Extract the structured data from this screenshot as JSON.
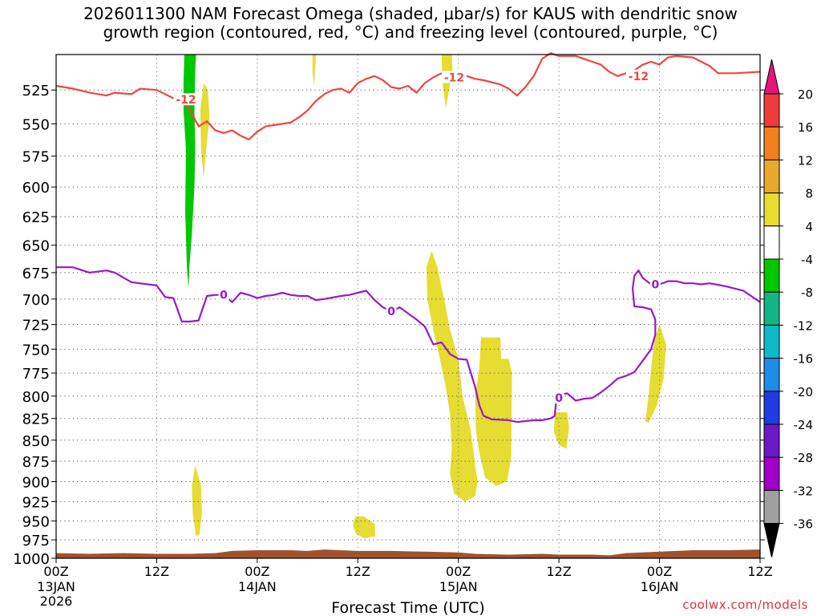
{
  "chart_data": {
    "type": "contour",
    "title_lines": [
      "2026011300 NAM Forecast Omega (shaded, μbar/s) for KAUS with dendritic snow",
      "growth region (contoured, red, °C) and freezing level (contoured, purple, °C)"
    ],
    "xlabel": "Forecast Time (UTC)",
    "ylabel": "",
    "x_ticks": [
      {
        "label": "00Z",
        "sub": "13JAN",
        "sub2": "2026",
        "hour": 0
      },
      {
        "label": "12Z",
        "sub": "",
        "sub2": "",
        "hour": 12
      },
      {
        "label": "00Z",
        "sub": "14JAN",
        "sub2": "",
        "hour": 24
      },
      {
        "label": "12Z",
        "sub": "",
        "sub2": "",
        "hour": 36
      },
      {
        "label": "00Z",
        "sub": "15JAN",
        "sub2": "",
        "hour": 48
      },
      {
        "label": "12Z",
        "sub": "",
        "sub2": "",
        "hour": 60
      },
      {
        "label": "00Z",
        "sub": "16JAN",
        "sub2": "",
        "hour": 72
      },
      {
        "label": "12Z",
        "sub": "",
        "sub2": "",
        "hour": 84
      }
    ],
    "xlim": [
      0,
      84
    ],
    "y_ticks": [
      525,
      550,
      575,
      600,
      625,
      650,
      675,
      700,
      725,
      750,
      775,
      800,
      825,
      850,
      875,
      900,
      925,
      950,
      975,
      1000
    ],
    "ylim": [
      500,
      1000
    ],
    "y_scale": "log",
    "grid": true,
    "colorbar": {
      "labels": [
        "20",
        "16",
        "12",
        "8",
        "4",
        "-4",
        "-8",
        "-12",
        "-16",
        "-20",
        "-24",
        "-28",
        "-32",
        "-36"
      ],
      "bins": [
        {
          "from": 16,
          "to": 20,
          "color": "#ee3b3b"
        },
        {
          "from": 12,
          "to": 16,
          "color": "#f07f1c"
        },
        {
          "from": 8,
          "to": 12,
          "color": "#e8a92e"
        },
        {
          "from": 4,
          "to": 8,
          "color": "#e6dc32"
        },
        {
          "from": -4,
          "to": 4,
          "color": "#ffffff"
        },
        {
          "from": -8,
          "to": -4,
          "color": "#00c800"
        },
        {
          "from": -12,
          "to": -8,
          "color": "#13b584"
        },
        {
          "from": -16,
          "to": -12,
          "color": "#10b9c8"
        },
        {
          "from": -20,
          "to": -16,
          "color": "#1e8ce8"
        },
        {
          "from": -24,
          "to": -20,
          "color": "#1e3ce0"
        },
        {
          "from": -28,
          "to": -24,
          "color": "#6a18c8"
        },
        {
          "from": -32,
          "to": -28,
          "color": "#a000c8"
        },
        {
          "from": -36,
          "to": -32,
          "color": "#a0a0a0"
        }
      ],
      "top_triangle_color": "#e6157a",
      "bottom_triangle_color": "#000000"
    },
    "contour_minus12": {
      "name": "-12",
      "color": "#f0463c",
      "label_text": "-12",
      "label_points": [
        [
          15.5,
          532
        ],
        [
          47.5,
          516
        ],
        [
          69.5,
          515
        ]
      ],
      "points": [
        [
          0,
          522
        ],
        [
          2,
          524
        ],
        [
          4,
          527
        ],
        [
          6,
          529
        ],
        [
          7,
          527
        ],
        [
          9,
          528
        ],
        [
          10,
          524
        ],
        [
          12,
          525
        ],
        [
          14,
          531
        ],
        [
          15,
          532
        ],
        [
          16,
          540
        ],
        [
          17,
          552
        ],
        [
          18,
          548
        ],
        [
          19,
          555
        ],
        [
          20,
          557
        ],
        [
          21,
          555
        ],
        [
          22,
          559
        ],
        [
          23,
          562
        ],
        [
          24,
          556
        ],
        [
          25,
          552
        ],
        [
          26,
          551
        ],
        [
          28,
          549
        ],
        [
          29,
          545
        ],
        [
          30,
          540
        ],
        [
          31,
          533
        ],
        [
          32,
          528
        ],
        [
          33,
          525
        ],
        [
          34,
          524
        ],
        [
          35,
          527
        ],
        [
          36,
          520
        ],
        [
          37,
          517
        ],
        [
          38,
          515
        ],
        [
          39,
          518
        ],
        [
          40,
          523
        ],
        [
          41,
          524
        ],
        [
          42,
          522
        ],
        [
          43,
          527
        ],
        [
          44,
          520
        ],
        [
          45,
          516
        ],
        [
          46,
          513
        ],
        [
          47,
          516
        ],
        [
          48,
          515
        ],
        [
          49,
          515
        ],
        [
          50,
          517
        ],
        [
          51,
          518
        ],
        [
          53,
          521
        ],
        [
          54,
          524
        ],
        [
          55,
          529
        ],
        [
          56,
          523
        ],
        [
          57,
          515
        ],
        [
          58,
          503
        ],
        [
          59,
          499
        ],
        [
          60,
          501
        ],
        [
          62,
          501
        ],
        [
          63,
          503
        ],
        [
          64,
          505
        ],
        [
          65,
          507
        ],
        [
          66,
          512
        ],
        [
          67,
          515
        ],
        [
          68,
          513
        ],
        [
          69,
          511
        ],
        [
          70,
          507
        ],
        [
          71,
          505
        ],
        [
          72,
          507
        ],
        [
          73,
          502
        ],
        [
          74,
          501
        ],
        [
          76,
          502
        ],
        [
          78,
          508
        ],
        [
          79,
          513
        ],
        [
          81,
          513
        ],
        [
          84,
          512
        ]
      ]
    },
    "contour_zero": {
      "name": "0",
      "color": "#9a18c8",
      "label_text": "0",
      "label_points": [
        [
          20,
          696
        ],
        [
          40,
          712
        ],
        [
          60,
          802
        ],
        [
          71.5,
          686
        ]
      ],
      "points": [
        [
          0,
          670
        ],
        [
          2,
          670
        ],
        [
          4,
          675
        ],
        [
          6,
          673
        ],
        [
          7,
          675
        ],
        [
          9,
          684
        ],
        [
          10,
          685
        ],
        [
          12,
          687
        ],
        [
          13,
          698
        ],
        [
          14,
          699
        ],
        [
          15,
          722
        ],
        [
          16,
          722
        ],
        [
          17,
          721
        ],
        [
          18,
          697
        ],
        [
          19,
          696
        ],
        [
          20,
          696
        ],
        [
          21,
          703
        ],
        [
          22,
          694
        ],
        [
          23,
          696
        ],
        [
          24,
          699
        ],
        [
          25,
          697
        ],
        [
          26,
          696
        ],
        [
          27,
          694
        ],
        [
          28,
          696
        ],
        [
          29,
          697
        ],
        [
          30,
          697
        ],
        [
          31,
          701
        ],
        [
          32,
          700
        ],
        [
          34,
          697
        ],
        [
          35,
          696
        ],
        [
          36,
          694
        ],
        [
          37,
          692
        ],
        [
          38,
          701
        ],
        [
          39,
          708
        ],
        [
          40,
          712
        ],
        [
          41,
          708
        ],
        [
          42,
          714
        ],
        [
          43,
          720
        ],
        [
          44,
          727
        ],
        [
          45,
          745
        ],
        [
          46,
          743
        ],
        [
          47,
          755
        ],
        [
          48,
          760
        ],
        [
          49,
          761
        ],
        [
          50,
          790
        ],
        [
          50.5,
          810
        ],
        [
          51,
          822
        ],
        [
          52,
          826
        ],
        [
          54,
          827
        ],
        [
          55,
          829
        ],
        [
          57,
          827
        ],
        [
          58,
          827
        ],
        [
          59,
          825
        ],
        [
          59.5,
          822
        ],
        [
          59.7,
          802
        ],
        [
          60.3,
          798
        ],
        [
          61,
          797
        ],
        [
          62,
          805
        ],
        [
          63,
          803
        ],
        [
          64,
          802
        ],
        [
          65,
          796
        ],
        [
          66,
          789
        ],
        [
          67,
          781
        ],
        [
          68,
          778
        ],
        [
          69,
          774
        ],
        [
          70,
          762
        ],
        [
          71,
          750
        ],
        [
          71.5,
          735
        ],
        [
          71.5,
          720
        ],
        [
          71,
          710
        ],
        [
          70,
          708
        ],
        [
          69,
          707
        ],
        [
          68.8,
          690
        ],
        [
          69,
          678
        ],
        [
          69.5,
          673
        ],
        [
          70,
          680
        ],
        [
          71,
          686
        ],
        [
          72,
          686
        ],
        [
          73,
          683
        ],
        [
          74,
          683
        ],
        [
          75,
          685
        ],
        [
          76,
          685
        ],
        [
          77,
          686
        ],
        [
          78,
          685
        ],
        [
          80,
          688
        ],
        [
          82,
          692
        ],
        [
          84,
          703
        ]
      ]
    },
    "shaded_regions": [
      {
        "value": -6,
        "color": "#00c800",
        "polygon": [
          [
            15.3,
            500
          ],
          [
            16.7,
            500
          ],
          [
            16.6,
            510
          ],
          [
            16.5,
            540
          ],
          [
            16.6,
            570
          ],
          [
            16.5,
            600
          ],
          [
            16.2,
            640
          ],
          [
            15.9,
            670
          ],
          [
            15.8,
            690
          ],
          [
            15.6,
            670
          ],
          [
            15.4,
            620
          ],
          [
            15.5,
            570
          ],
          [
            15.2,
            540
          ],
          [
            15.2,
            520
          ]
        ]
      },
      {
        "value": 5,
        "color": "#e6dc32",
        "polygon": [
          [
            17.6,
            520
          ],
          [
            18.1,
            525
          ],
          [
            18.3,
            545
          ],
          [
            17.9,
            570
          ],
          [
            17.6,
            592
          ],
          [
            17.3,
            570
          ],
          [
            17.2,
            540
          ]
        ]
      },
      {
        "value": 5,
        "color": "#e6dc32",
        "polygon": [
          [
            30.6,
            500
          ],
          [
            31.0,
            500
          ],
          [
            30.9,
            510
          ],
          [
            30.8,
            522
          ],
          [
            30.6,
            512
          ]
        ]
      },
      {
        "value": 5,
        "color": "#e6dc32",
        "polygon": [
          [
            46.0,
            500
          ],
          [
            47.2,
            500
          ],
          [
            47.3,
            510
          ],
          [
            46.9,
            525
          ],
          [
            46.5,
            538
          ],
          [
            46.1,
            520
          ]
        ]
      },
      {
        "value": 5,
        "color": "#e6dc32",
        "polygon": [
          [
            44.8,
            655
          ],
          [
            45.5,
            670
          ],
          [
            46.3,
            700
          ],
          [
            47.0,
            730
          ],
          [
            48.0,
            760
          ],
          [
            48.5,
            800
          ],
          [
            49.5,
            840
          ],
          [
            50.0,
            880
          ],
          [
            50.3,
            900
          ],
          [
            50.0,
            918
          ],
          [
            48.8,
            925
          ],
          [
            47.5,
            915
          ],
          [
            47.0,
            890
          ],
          [
            47.2,
            860
          ],
          [
            47.0,
            820
          ],
          [
            46.5,
            790
          ],
          [
            45.8,
            760
          ],
          [
            45.0,
            730
          ],
          [
            44.3,
            700
          ],
          [
            44.2,
            670
          ]
        ]
      },
      {
        "value": 5,
        "color": "#e6dc32",
        "polygon": [
          [
            50.7,
            738
          ],
          [
            53.0,
            738
          ],
          [
            53.1,
            760
          ],
          [
            54.0,
            760
          ],
          [
            54.4,
            775
          ],
          [
            54.3,
            870
          ],
          [
            53.8,
            900
          ],
          [
            52.5,
            905
          ],
          [
            51.2,
            895
          ],
          [
            50.6,
            870
          ],
          [
            50.1,
            840
          ],
          [
            50.0,
            800
          ],
          [
            50.5,
            770
          ]
        ]
      },
      {
        "value": 5,
        "color": "#e6dc32",
        "polygon": [
          [
            59.5,
            818
          ],
          [
            61.0,
            818
          ],
          [
            61.2,
            835
          ],
          [
            60.9,
            860
          ],
          [
            60.0,
            856
          ],
          [
            59.4,
            840
          ]
        ]
      },
      {
        "value": 5,
        "color": "#e6dc32",
        "polygon": [
          [
            72.0,
            725
          ],
          [
            72.8,
            745
          ],
          [
            72.5,
            780
          ],
          [
            71.7,
            810
          ],
          [
            70.7,
            830
          ],
          [
            70.3,
            828
          ],
          [
            70.7,
            800
          ],
          [
            71.0,
            770
          ],
          [
            71.4,
            740
          ]
        ]
      },
      {
        "value": 5,
        "color": "#e6dc32",
        "polygon": [
          [
            16.6,
            880
          ],
          [
            17.3,
            905
          ],
          [
            17.4,
            940
          ],
          [
            17.1,
            968
          ],
          [
            16.7,
            970
          ],
          [
            16.3,
            940
          ],
          [
            16.2,
            905
          ]
        ]
      },
      {
        "value": 5,
        "color": "#e6dc32",
        "polygon": [
          [
            35.7,
            944
          ],
          [
            36.7,
            944
          ],
          [
            38.0,
            954
          ],
          [
            38.1,
            970
          ],
          [
            36.8,
            973
          ],
          [
            35.8,
            967
          ],
          [
            35.4,
            956
          ]
        ]
      }
    ],
    "terrain": {
      "color": "#a0522d",
      "top_points": [
        [
          0,
          993
        ],
        [
          4,
          994
        ],
        [
          8,
          993
        ],
        [
          12,
          994
        ],
        [
          16,
          994
        ],
        [
          19,
          993
        ],
        [
          21,
          990
        ],
        [
          24,
          989
        ],
        [
          28,
          989
        ],
        [
          30,
          990
        ],
        [
          32,
          988
        ],
        [
          36,
          990
        ],
        [
          40,
          990
        ],
        [
          44,
          991
        ],
        [
          48,
          992
        ],
        [
          50,
          994
        ],
        [
          54,
          995
        ],
        [
          58,
          994
        ],
        [
          60,
          995
        ],
        [
          64,
          995
        ],
        [
          66,
          996
        ],
        [
          68,
          993
        ],
        [
          72,
          991
        ],
        [
          76,
          989
        ],
        [
          80,
          989
        ],
        [
          84,
          988
        ]
      ]
    }
  },
  "credit": "coolwx.com/models"
}
